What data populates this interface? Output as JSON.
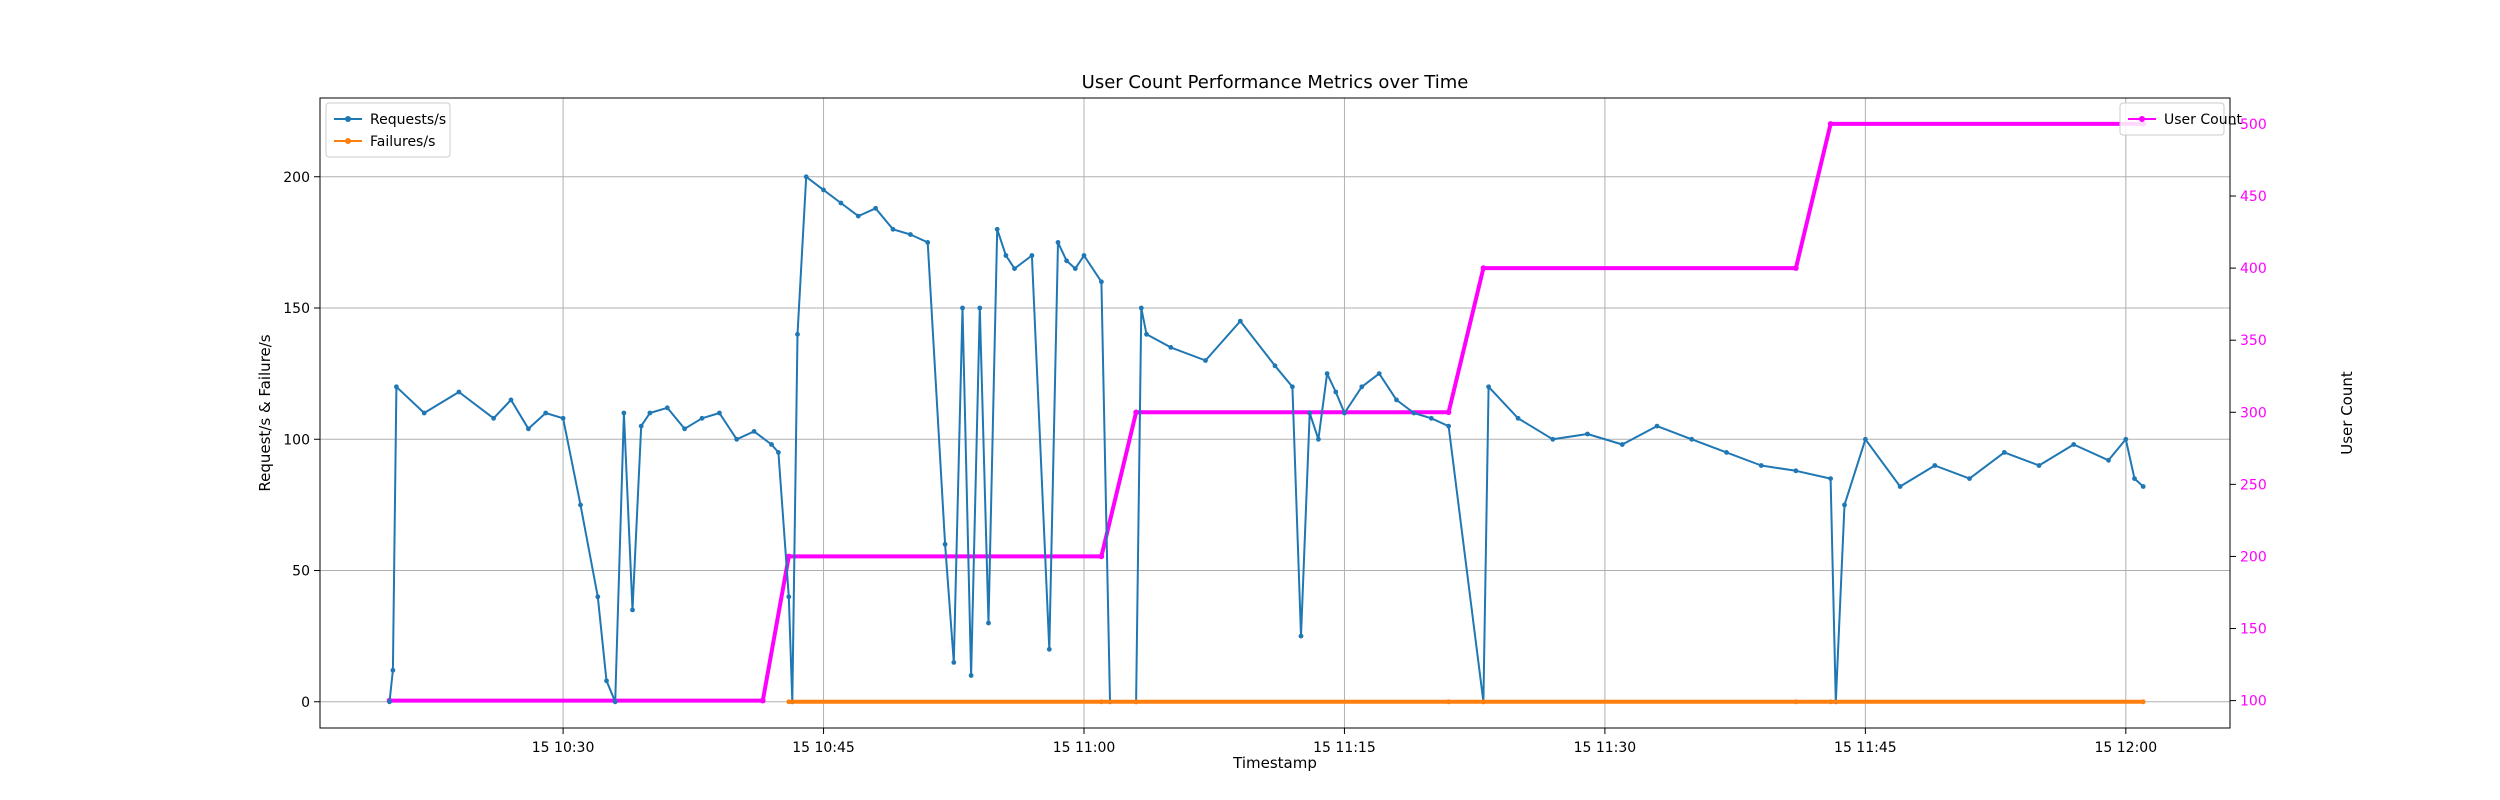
{
  "chart_data": {
    "type": "line",
    "title": "User Count Performance Metrics over Time",
    "xlabel": "Timestamp",
    "ylabel": "Request/s & Failure/s",
    "ylabel_right": "User Count",
    "x_ticks": [
      "15 10:30",
      "15 10:45",
      "15 11:00",
      "15 11:15",
      "15 11:30",
      "15 11:45",
      "15 12:00"
    ],
    "x_range_minutes": [
      "10:16",
      "12:06"
    ],
    "ylim": [
      -10,
      230
    ],
    "ylim_right": [
      81,
      518
    ],
    "y_ticks": [
      0,
      50,
      100,
      150,
      200
    ],
    "y_ticks_right": [
      100,
      150,
      200,
      250,
      300,
      350,
      400,
      450,
      500
    ],
    "grid": true,
    "legend_left": {
      "placement": "top-left",
      "entries": [
        "Requests/s",
        "Failures/s"
      ]
    },
    "legend_right": {
      "placement": "top-right",
      "entries": [
        "User Count"
      ]
    },
    "colors": {
      "requests": "#1f77b4",
      "failures": "#ff7f0e",
      "users": "#ff00ff"
    },
    "series": [
      {
        "name": "Requests/s",
        "axis": "left",
        "x": [
          "10:20",
          "10:20.2",
          "10:20.4",
          "10:22",
          "10:24",
          "10:26",
          "10:27",
          "10:28",
          "10:29",
          "10:30",
          "10:31",
          "10:32",
          "10:32.5",
          "10:33",
          "10:33.5",
          "10:34",
          "10:34.5",
          "10:35",
          "10:36",
          "10:37",
          "10:38",
          "10:39",
          "10:40",
          "10:41",
          "10:42",
          "10:42.4",
          "10:43",
          "10:43.2",
          "10:43.5",
          "10:44",
          "10:45",
          "10:46",
          "10:47",
          "10:48",
          "10:49",
          "10:50",
          "10:51",
          "10:52",
          "10:52.5",
          "10:53",
          "10:53.5",
          "10:54",
          "10:54.5",
          "10:55",
          "10:55.5",
          "10:56",
          "10:57",
          "10:58",
          "10:58.5",
          "10:59",
          "10:59.5",
          "11:00",
          "11:01",
          "11:01.5",
          "11:03",
          "11:03.3",
          "11:03.6",
          "11:05",
          "11:07",
          "11:09",
          "11:11",
          "11:12",
          "11:12.5",
          "11:13",
          "11:13.5",
          "11:14",
          "11:14.5",
          "11:15",
          "11:16",
          "11:17",
          "11:18",
          "11:19",
          "11:20",
          "11:21",
          "11:23",
          "11:23.3",
          "11:25",
          "11:27",
          "11:29",
          "11:31",
          "11:33",
          "11:35",
          "11:37",
          "11:39",
          "11:41",
          "11:43",
          "11:43.3",
          "11:43.8",
          "11:45",
          "11:47",
          "11:49",
          "11:51",
          "11:53",
          "11:55",
          "11:57",
          "11:59",
          "12:00",
          "12:00.5",
          "12:01"
        ],
        "values": [
          0,
          12,
          120,
          110,
          118,
          108,
          115,
          104,
          110,
          108,
          75,
          40,
          8,
          0,
          110,
          35,
          105,
          110,
          112,
          104,
          108,
          110,
          100,
          103,
          98,
          95,
          40,
          0,
          140,
          200,
          195,
          190,
          185,
          188,
          180,
          178,
          175,
          60,
          15,
          150,
          10,
          150,
          30,
          180,
          170,
          165,
          170,
          20,
          175,
          168,
          165,
          170,
          160,
          0,
          0,
          150,
          140,
          135,
          130,
          145,
          128,
          120,
          25,
          110,
          100,
          125,
          118,
          110,
          120,
          125,
          115,
          110,
          108,
          105,
          0,
          120,
          108,
          100,
          102,
          98,
          105,
          100,
          95,
          90,
          88,
          85,
          0,
          75,
          100,
          82,
          90,
          85,
          95,
          90,
          98,
          92,
          100,
          85,
          82
        ]
      },
      {
        "name": "Failures/s",
        "axis": "left",
        "x": [
          "10:43",
          "11:01",
          "11:03",
          "11:21",
          "11:23",
          "11:41",
          "11:43",
          "12:01"
        ],
        "values": [
          0,
          0,
          0,
          0,
          0,
          0,
          0,
          0
        ]
      },
      {
        "name": "User Count",
        "axis": "right",
        "x": [
          "10:20",
          "10:41.5",
          "10:43",
          "11:01",
          "11:03",
          "11:21",
          "11:23",
          "11:41",
          "11:43",
          "12:01"
        ],
        "values": [
          100,
          100,
          200,
          200,
          300,
          300,
          400,
          400,
          500,
          500
        ]
      }
    ]
  }
}
